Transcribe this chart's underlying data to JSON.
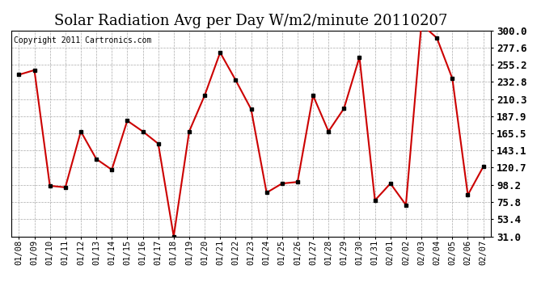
{
  "title": "Solar Radiation Avg per Day W/m2/minute 20110207",
  "copyright": "Copyright 2011 Cartronics.com",
  "dates": [
    "01/08",
    "01/09",
    "01/10",
    "01/11",
    "01/12",
    "01/13",
    "01/14",
    "01/15",
    "01/16",
    "01/17",
    "01/18",
    "01/19",
    "01/20",
    "01/21",
    "01/22",
    "01/23",
    "01/24",
    "01/25",
    "01/26",
    "01/27",
    "01/28",
    "01/29",
    "01/30",
    "01/31",
    "02/01",
    "02/02",
    "02/03",
    "02/04",
    "02/05",
    "02/06",
    "02/07"
  ],
  "values": [
    242,
    248,
    97,
    95,
    168,
    132,
    118,
    182,
    168,
    152,
    31,
    168,
    215,
    271,
    235,
    197,
    88,
    100,
    102,
    215,
    168,
    198,
    265,
    78,
    100,
    72,
    308,
    290,
    237,
    85,
    122
  ],
  "line_color": "#cc0000",
  "marker_color": "#000000",
  "bg_color": "#ffffff",
  "grid_color": "#aaaaaa",
  "yticks": [
    31.0,
    53.4,
    75.8,
    98.2,
    120.7,
    143.1,
    165.5,
    187.9,
    210.3,
    232.8,
    255.2,
    277.6,
    300.0
  ],
  "ylim": [
    31.0,
    300.0
  ],
  "title_fontsize": 13,
  "copyright_fontsize": 7,
  "tick_fontsize": 7.5,
  "ytick_fontsize": 9
}
